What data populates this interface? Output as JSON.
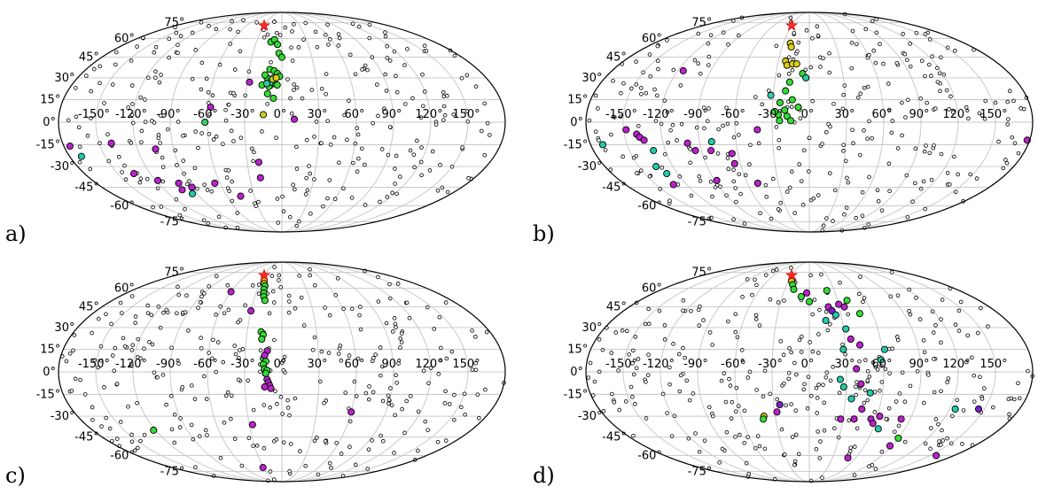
{
  "chart_data": [
    {
      "type": "scatter",
      "projection": "mollweide",
      "panel_label": "a)",
      "lon_ticks": [
        -150,
        -120,
        -90,
        -60,
        -30,
        0,
        30,
        60,
        90,
        120,
        150
      ],
      "lat_ticks": [
        -75,
        -60,
        -45,
        -30,
        -15,
        0,
        15,
        30,
        45,
        60,
        75
      ],
      "star": {
        "lon": -30,
        "lat": 72
      },
      "highlighted": [
        {
          "lon": -13,
          "lat": 57,
          "color": "#33dd33"
        },
        {
          "lon": -9,
          "lat": 59,
          "color": "#33dd33"
        },
        {
          "lon": -5,
          "lat": 55,
          "color": "#33dd33"
        },
        {
          "lon": -3,
          "lat": 48,
          "color": "#33dd33"
        },
        {
          "lon": 0,
          "lat": 45,
          "color": "#33dd33"
        },
        {
          "lon": -11,
          "lat": 36,
          "color": "#33dd33"
        },
        {
          "lon": -7,
          "lat": 35,
          "color": "#33dd33"
        },
        {
          "lon": -4,
          "lat": 33,
          "color": "#33dd33"
        },
        {
          "lon": -2,
          "lat": 31,
          "color": "#33dd33"
        },
        {
          "lon": -13,
          "lat": 30,
          "color": "#33dd33"
        },
        {
          "lon": -9,
          "lat": 28,
          "color": "#33dd33"
        },
        {
          "lon": -6,
          "lat": 26,
          "color": "#33dd33"
        },
        {
          "lon": -15,
          "lat": 32,
          "color": "#33dd33"
        },
        {
          "lon": -11,
          "lat": 24,
          "color": "#33dd33"
        },
        {
          "lon": -4,
          "lat": 25,
          "color": "#33dd33"
        },
        {
          "lon": -12,
          "lat": 19,
          "color": "#33dd33"
        },
        {
          "lon": -7,
          "lat": 16,
          "color": "#33dd33"
        },
        {
          "lon": -17,
          "lat": 25,
          "color": "#33dd33"
        },
        {
          "lon": -10,
          "lat": 27,
          "color": "#33cccc"
        },
        {
          "lon": -8,
          "lat": 29,
          "color": "#bbdd22"
        },
        {
          "lon": -5,
          "lat": 30,
          "color": "#ddcc11"
        },
        {
          "lon": -13,
          "lat": 26,
          "color": "#33ccaa"
        },
        {
          "lon": -15,
          "lat": 5,
          "color": "#cccc22"
        },
        {
          "lon": -28,
          "lat": 27,
          "color": "#bb22cc"
        },
        {
          "lon": -58,
          "lat": 10,
          "color": "#bb22cc"
        },
        {
          "lon": 10,
          "lat": 2,
          "color": "#bb22cc"
        },
        {
          "lon": -62,
          "lat": 0,
          "color": "#33cc66"
        },
        {
          "lon": -175,
          "lat": -16,
          "color": "#bb22cc"
        },
        {
          "lon": -140,
          "lat": -14,
          "color": "#bb22cc"
        },
        {
          "lon": -105,
          "lat": -18,
          "color": "#bb22cc"
        },
        {
          "lon": -170,
          "lat": -23,
          "color": "#22ccaa"
        },
        {
          "lon": -135,
          "lat": -35,
          "color": "#bb22cc"
        },
        {
          "lon": -118,
          "lat": -40,
          "color": "#bb22cc"
        },
        {
          "lon": -102,
          "lat": -47,
          "color": "#bb22cc"
        },
        {
          "lon": -100,
          "lat": -42,
          "color": "#bb22cc"
        },
        {
          "lon": -90,
          "lat": -45,
          "color": "#bb22cc"
        },
        {
          "lon": -95,
          "lat": -50,
          "color": "#22ccaa"
        },
        {
          "lon": -65,
          "lat": -42,
          "color": "#bb22cc"
        },
        {
          "lon": -45,
          "lat": -52,
          "color": "#bb22cc"
        },
        {
          "lon": -20,
          "lat": -27,
          "color": "#bb22cc"
        },
        {
          "lon": -20,
          "lat": -38,
          "color": "#bb22cc"
        }
      ]
    },
    {
      "type": "scatter",
      "projection": "mollweide",
      "panel_label": "b)",
      "lon_ticks": [
        -150,
        -120,
        -90,
        -60,
        -30,
        0,
        30,
        60,
        90,
        120,
        150
      ],
      "lat_ticks": [
        -75,
        -60,
        -45,
        -30,
        -15,
        0,
        15,
        30,
        45,
        60,
        75
      ],
      "star": {
        "lon": -30,
        "lat": 72
      },
      "highlighted": [
        {
          "lon": -22,
          "lat": 56,
          "color": "#ddcc11"
        },
        {
          "lon": -20,
          "lat": 53,
          "color": "#ddcc11"
        },
        {
          "lon": -23,
          "lat": 42,
          "color": "#ddcc11"
        },
        {
          "lon": -21,
          "lat": 39,
          "color": "#ddcc11"
        },
        {
          "lon": -16,
          "lat": 40,
          "color": "#ddcc11"
        },
        {
          "lon": -12,
          "lat": 40,
          "color": "#ddcc11"
        },
        {
          "lon": -6,
          "lat": 33,
          "color": "#33dd33"
        },
        {
          "lon": -17,
          "lat": 27,
          "color": "#33dd33"
        },
        {
          "lon": -20,
          "lat": 21,
          "color": "#33dd33"
        },
        {
          "lon": -14,
          "lat": 15,
          "color": "#33dd33"
        },
        {
          "lon": -24,
          "lat": 13,
          "color": "#33dd33"
        },
        {
          "lon": -9,
          "lat": 10,
          "color": "#33dd33"
        },
        {
          "lon": -25,
          "lat": 5,
          "color": "#33dd33"
        },
        {
          "lon": -18,
          "lat": 4,
          "color": "#33dd33"
        },
        {
          "lon": -20,
          "lat": 8,
          "color": "#33dd33"
        },
        {
          "lon": -24,
          "lat": 1,
          "color": "#33dd33"
        },
        {
          "lon": -15,
          "lat": 1,
          "color": "#33dd33"
        },
        {
          "lon": -32,
          "lat": 18,
          "color": "#33ccaa"
        },
        {
          "lon": -28,
          "lat": 7,
          "color": "#33dd33"
        },
        {
          "lon": -115,
          "lat": 35,
          "color": "#bb22cc"
        },
        {
          "lon": -148,
          "lat": -5,
          "color": "#bb22cc"
        },
        {
          "lon": -140,
          "lat": -8,
          "color": "#bb22cc"
        },
        {
          "lon": -138,
          "lat": -10,
          "color": "#bb22cc"
        },
        {
          "lon": -135,
          "lat": -12,
          "color": "#bb22cc"
        },
        {
          "lon": -170,
          "lat": -15,
          "color": "#22ccaa"
        },
        {
          "lon": -130,
          "lat": -19,
          "color": "#22ccaa"
        },
        {
          "lon": -100,
          "lat": -14,
          "color": "#bb22cc"
        },
        {
          "lon": -80,
          "lat": -13,
          "color": "#22ccaa"
        },
        {
          "lon": -95,
          "lat": -19,
          "color": "#bb22cc"
        },
        {
          "lon": -82,
          "lat": -19,
          "color": "#bb22cc"
        },
        {
          "lon": -65,
          "lat": -21,
          "color": "#bb22cc"
        },
        {
          "lon": -65,
          "lat": -28,
          "color": "#bb22cc"
        },
        {
          "lon": -135,
          "lat": -30,
          "color": "#22ccaa"
        },
        {
          "lon": -130,
          "lat": -35,
          "color": "#22ccaa"
        },
        {
          "lon": -133,
          "lat": -43,
          "color": "#bb22cc"
        },
        {
          "lon": -88,
          "lat": -40,
          "color": "#bb22cc"
        },
        {
          "lon": -50,
          "lat": -42,
          "color": "#bb22cc"
        },
        {
          "lon": 178,
          "lat": -12,
          "color": "#bb22cc"
        },
        {
          "lon": -42,
          "lat": -5,
          "color": "#bb22cc"
        },
        {
          "lon": -3,
          "lat": 30,
          "color": "#22ccaa"
        }
      ]
    },
    {
      "type": "scatter",
      "projection": "mollweide",
      "panel_label": "c)",
      "lon_ticks": [
        -150,
        -120,
        -90,
        -60,
        -30,
        0,
        30,
        60,
        90,
        120,
        150
      ],
      "lat_ticks": [
        -75,
        -60,
        -45,
        -30,
        -15,
        0,
        15,
        30,
        45,
        60,
        75
      ],
      "star": {
        "lon": -30,
        "lat": 72
      },
      "highlighted": [
        {
          "lon": -26,
          "lat": 67,
          "color": "#ddcc11"
        },
        {
          "lon": -24,
          "lat": 64,
          "color": "#ddcc11"
        },
        {
          "lon": -22,
          "lat": 62,
          "color": "#33dd33"
        },
        {
          "lon": -22,
          "lat": 59,
          "color": "#33dd33"
        },
        {
          "lon": -21,
          "lat": 56,
          "color": "#33dd33"
        },
        {
          "lon": -20,
          "lat": 53,
          "color": "#33dd33"
        },
        {
          "lon": -18,
          "lat": 50,
          "color": "#33dd33"
        },
        {
          "lon": -18,
          "lat": 27,
          "color": "#33dd33"
        },
        {
          "lon": -16,
          "lat": 25,
          "color": "#33dd33"
        },
        {
          "lon": -17,
          "lat": 22,
          "color": "#33dd33"
        },
        {
          "lon": -15,
          "lat": 9,
          "color": "#33dd33"
        },
        {
          "lon": -13,
          "lat": 7,
          "color": "#33dd33"
        },
        {
          "lon": -15,
          "lat": 5,
          "color": "#33dd33"
        },
        {
          "lon": -14,
          "lat": 2,
          "color": "#33dd33"
        },
        {
          "lon": -12,
          "lat": 1,
          "color": "#33dd33"
        },
        {
          "lon": -13,
          "lat": -1,
          "color": "#33dd33"
        },
        {
          "lon": -12,
          "lat": 14,
          "color": "#bb22cc"
        },
        {
          "lon": -14,
          "lat": 11,
          "color": "#bb22cc"
        },
        {
          "lon": -12,
          "lat": -5,
          "color": "#bb22cc"
        },
        {
          "lon": -11,
          "lat": -7,
          "color": "#bb22cc"
        },
        {
          "lon": -10,
          "lat": -9,
          "color": "#bb22cc"
        },
        {
          "lon": -9,
          "lat": -11,
          "color": "#bb22cc"
        },
        {
          "lon": -14,
          "lat": -10,
          "color": "#bb22cc"
        },
        {
          "lon": -30,
          "lat": 42,
          "color": "#bb22cc"
        },
        {
          "lon": -60,
          "lat": 57,
          "color": "#bb22cc"
        },
        {
          "lon": -27,
          "lat": -36,
          "color": "#bb22cc"
        },
        {
          "lon": -31,
          "lat": -71,
          "color": "#bb22cc"
        },
        {
          "lon": 60,
          "lat": -27,
          "color": "#bb22cc"
        },
        {
          "lon": -122,
          "lat": -40,
          "color": "#33dd33"
        }
      ]
    },
    {
      "type": "scatter",
      "projection": "mollweide",
      "panel_label": "d)",
      "lon_ticks": [
        -150,
        -120,
        -90,
        -60,
        -30,
        0,
        30,
        60,
        90,
        120,
        150
      ],
      "lat_ticks": [
        -75,
        -60,
        -45,
        -30,
        -15,
        0,
        15,
        30,
        45,
        60,
        75
      ],
      "star": {
        "lon": -30,
        "lat": 72
      },
      "highlighted": [
        {
          "lon": -25,
          "lat": 66,
          "color": "#ddcc11"
        },
        {
          "lon": -22,
          "lat": 63,
          "color": "#33dd33"
        },
        {
          "lon": -19,
          "lat": 59,
          "color": "#33dd33"
        },
        {
          "lon": -9,
          "lat": 53,
          "color": "#33dd33"
        },
        {
          "lon": 0,
          "lat": 49,
          "color": "#33dd33"
        },
        {
          "lon": -3,
          "lat": 56,
          "color": "#bb22cc"
        },
        {
          "lon": 21,
          "lat": 58,
          "color": "#33dd33"
        },
        {
          "lon": 40,
          "lat": 50,
          "color": "#33dd33"
        },
        {
          "lon": 30,
          "lat": 47,
          "color": "#bb22cc"
        },
        {
          "lon": 35,
          "lat": 45,
          "color": "#bb22cc"
        },
        {
          "lon": 19,
          "lat": 45,
          "color": "#bb22cc"
        },
        {
          "lon": 22,
          "lat": 42,
          "color": "#7722cc"
        },
        {
          "lon": 25,
          "lat": 39,
          "color": "#22ccaa"
        },
        {
          "lon": 15,
          "lat": 35,
          "color": "#22ccaa"
        },
        {
          "lon": 32,
          "lat": 29,
          "color": "#22ccaa"
        },
        {
          "lon": 48,
          "lat": 40,
          "color": "#33dd33"
        },
        {
          "lon": 35,
          "lat": 22,
          "color": "#bb22cc"
        },
        {
          "lon": 42,
          "lat": 18,
          "color": "#bb22cc"
        },
        {
          "lon": 28,
          "lat": 15,
          "color": "#22ccaa"
        },
        {
          "lon": 62,
          "lat": 15,
          "color": "#22ccaa"
        },
        {
          "lon": 58,
          "lat": 8,
          "color": "#22ccaa"
        },
        {
          "lon": 38,
          "lat": 2,
          "color": "#bb22cc"
        },
        {
          "lon": 25,
          "lat": -5,
          "color": "#22ccaa"
        },
        {
          "lon": 28,
          "lat": -10,
          "color": "#22ccaa"
        },
        {
          "lon": 42,
          "lat": -8,
          "color": "#bb22cc"
        },
        {
          "lon": 50,
          "lat": -14,
          "color": "#22ccaa"
        },
        {
          "lon": 35,
          "lat": -18,
          "color": "#22ccaa"
        },
        {
          "lon": 45,
          "lat": -25,
          "color": "#bb22cc"
        },
        {
          "lon": -25,
          "lat": -22,
          "color": "#7722cc"
        },
        {
          "lon": -28,
          "lat": -27,
          "color": "#bb22cc"
        },
        {
          "lon": -40,
          "lat": -30,
          "color": "#ddcc11"
        },
        {
          "lon": -41,
          "lat": -32,
          "color": "#33dd33"
        },
        {
          "lon": 28,
          "lat": -32,
          "color": "#bb22cc"
        },
        {
          "lon": 40,
          "lat": -32,
          "color": "#bb22cc"
        },
        {
          "lon": 55,
          "lat": -32,
          "color": "#bb22cc"
        },
        {
          "lon": 58,
          "lat": -35,
          "color": "#bb22cc"
        },
        {
          "lon": 62,
          "lat": -30,
          "color": "#bb22cc"
        },
        {
          "lon": 82,
          "lat": -32,
          "color": "#bb22cc"
        },
        {
          "lon": 65,
          "lat": -39,
          "color": "#22ccaa"
        },
        {
          "lon": 90,
          "lat": -46,
          "color": "#33dd33"
        },
        {
          "lon": 88,
          "lat": -52,
          "color": "#bb22cc"
        },
        {
          "lon": 125,
          "lat": -25,
          "color": "#22ccaa"
        },
        {
          "lon": 145,
          "lat": -25,
          "color": "#7722cc"
        },
        {
          "lon": 158,
          "lat": -60,
          "color": "#bb22cc"
        },
        {
          "lon": 50,
          "lat": -62,
          "color": "#bb22cc"
        }
      ]
    }
  ]
}
